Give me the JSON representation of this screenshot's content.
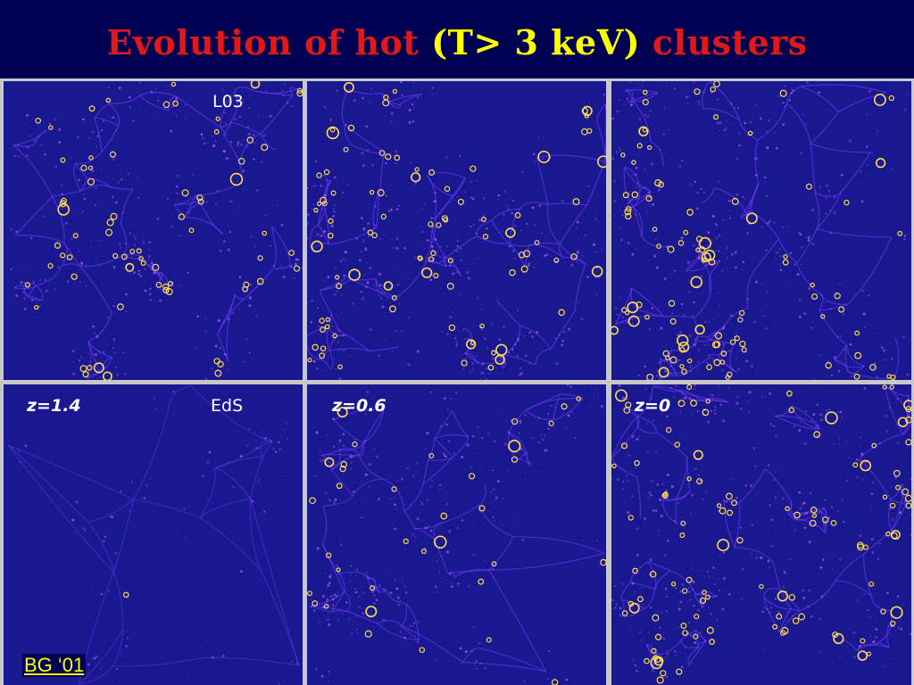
{
  "title": {
    "part1": "Evolution of hot ",
    "part2": "(T> 3 keV)",
    "part3": " clusters"
  },
  "colors": {
    "background": "#000050",
    "title_red": "#e01818",
    "title_yellow": "#ffff00",
    "panel_bg": "#1a1890",
    "filament": "#6a3cff",
    "cluster_ring": "#ffdc50",
    "divider": "#c8c8c8"
  },
  "panels": {
    "top_left": {
      "model_label": "L03",
      "z_label": "",
      "cluster_count": 70,
      "filament_density": 1.0
    },
    "top_middle": {
      "model_label": "",
      "z_label": "",
      "cluster_count": 90,
      "filament_density": 1.2
    },
    "top_right": {
      "model_label": "",
      "z_label": "",
      "cluster_count": 95,
      "filament_density": 1.2
    },
    "bottom_left": {
      "model_label": "EdS",
      "z_label": "z=1.4",
      "cluster_count": 1,
      "filament_density": 0.3
    },
    "bottom_middle": {
      "model_label": "",
      "z_label": "z=0.6",
      "cluster_count": 35,
      "filament_density": 0.9
    },
    "bottom_right": {
      "model_label": "",
      "z_label": "z=0",
      "cluster_count": 110,
      "filament_density": 1.3
    }
  },
  "credit": "BG ‘01",
  "icons": {
    "cluster_marker": "yellow-ring-icon"
  }
}
